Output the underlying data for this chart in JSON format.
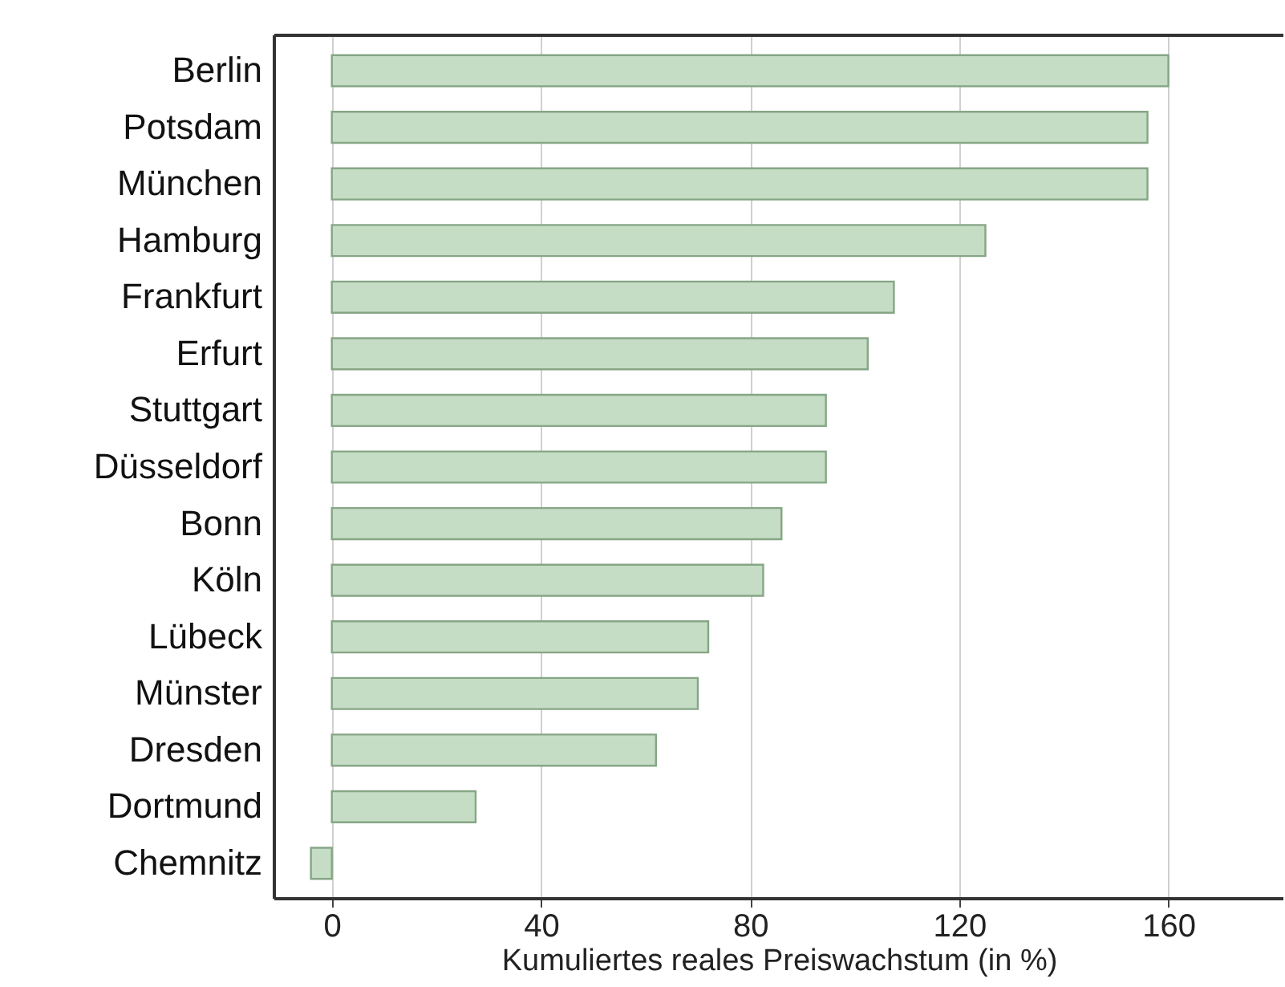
{
  "chart_data": {
    "type": "bar",
    "orientation": "horizontal",
    "xlabel": "Kumuliertes reales Preiswachstum (in %)",
    "categories": [
      "Berlin",
      "Potsdam",
      "München",
      "Hamburg",
      "Frankfurt",
      "Erfurt",
      "Stuttgart",
      "Düsseldorf",
      "Bonn",
      "Köln",
      "Lübeck",
      "Münster",
      "Dresden",
      "Dortmund",
      "Chemnitz"
    ],
    "values": [
      160,
      156,
      156,
      125,
      107.5,
      102.5,
      94.5,
      94.5,
      86,
      82.5,
      72,
      70,
      62,
      27.5,
      -4
    ],
    "color": "#c5dcc5",
    "xlim": [
      -11,
      182
    ],
    "xticks": [
      0,
      40,
      80,
      120,
      160
    ],
    "grid": "x"
  }
}
